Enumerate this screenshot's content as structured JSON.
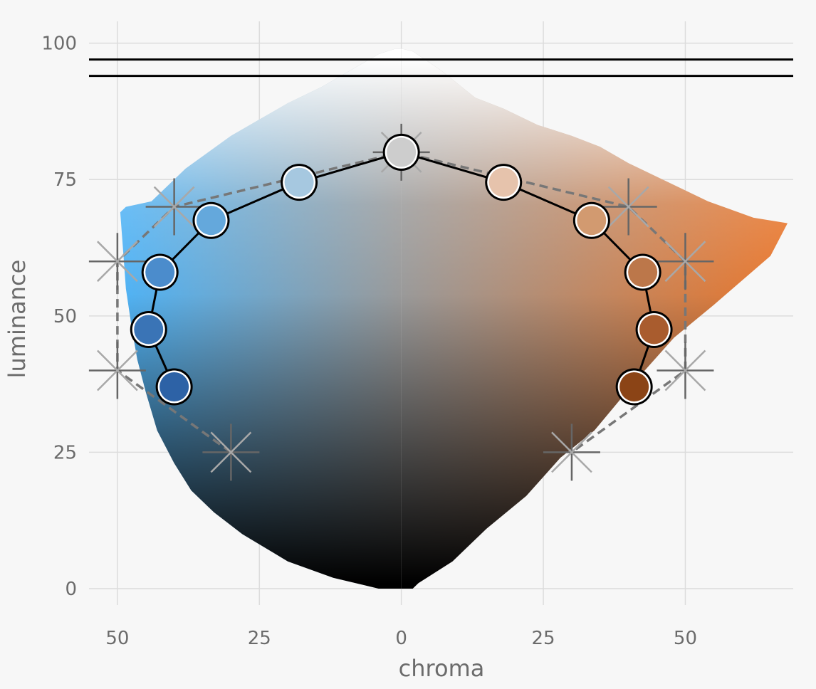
{
  "chart_data": {
    "type": "scatter",
    "title": "",
    "xlabel": "chroma",
    "ylabel": "luminance",
    "xlim": [
      -55,
      69
    ],
    "ylim": [
      -3,
      104
    ],
    "x_ticks": [
      {
        "value": -50,
        "label": "50"
      },
      {
        "value": -25,
        "label": "25"
      },
      {
        "value": 0,
        "label": "0"
      },
      {
        "value": 25,
        "label": "25"
      },
      {
        "value": 50,
        "label": "50"
      }
    ],
    "y_ticks": [
      {
        "value": 0,
        "label": "0"
      },
      {
        "value": 25,
        "label": "25"
      },
      {
        "value": 50,
        "label": "50"
      },
      {
        "value": 75,
        "label": "75"
      },
      {
        "value": 100,
        "label": "100"
      }
    ],
    "grid": true,
    "reference_lines_luminance": [
      97,
      94
    ],
    "gamut": {
      "left_hue_color": "#4fb3f6",
      "right_hue_color": "#e8762c",
      "left_boundary": [
        [
          0,
          0
        ],
        [
          -4,
          0
        ],
        [
          -12,
          2
        ],
        [
          -20,
          5
        ],
        [
          -28,
          10
        ],
        [
          -33,
          14
        ],
        [
          -37,
          18
        ],
        [
          -40,
          23
        ],
        [
          -43,
          29
        ],
        [
          -45,
          36
        ],
        [
          -46.5,
          42
        ],
        [
          -47.5,
          48
        ],
        [
          -48.5,
          55
        ],
        [
          -49,
          62
        ],
        [
          -49.5,
          69
        ],
        [
          -48.5,
          70
        ],
        [
          -44,
          71
        ],
        [
          -38,
          77
        ],
        [
          -34,
          80
        ],
        [
          -30,
          83
        ],
        [
          -25,
          86
        ],
        [
          -20,
          89
        ],
        [
          -14,
          92
        ],
        [
          -9,
          95
        ],
        [
          -4,
          98
        ],
        [
          -1,
          99
        ],
        [
          0,
          99
        ]
      ],
      "right_boundary": [
        [
          0,
          99
        ],
        [
          2,
          98.5
        ],
        [
          7,
          95
        ],
        [
          13,
          90
        ],
        [
          18,
          88
        ],
        [
          24,
          85
        ],
        [
          30,
          83
        ],
        [
          35,
          81
        ],
        [
          40,
          78
        ],
        [
          46,
          75
        ],
        [
          54,
          71
        ],
        [
          62,
          68
        ],
        [
          68,
          67
        ],
        [
          65,
          61
        ],
        [
          55,
          52
        ],
        [
          48,
          46
        ],
        [
          42,
          39
        ],
        [
          38,
          34
        ],
        [
          34,
          29
        ],
        [
          28,
          24
        ],
        [
          22,
          17
        ],
        [
          15,
          11
        ],
        [
          9,
          5
        ],
        [
          3,
          1
        ],
        [
          2,
          0
        ],
        [
          0,
          0
        ]
      ]
    },
    "series": [
      {
        "points": [
          [
            -40,
            37
          ],
          [
            -44.5,
            47.5
          ],
          [
            -42.5,
            58
          ],
          [
            -33.5,
            67.5
          ],
          [
            -18,
            74.5
          ],
          [
            0,
            80
          ],
          [
            18,
            74.5
          ],
          [
            33.5,
            67.5
          ],
          [
            42.5,
            58
          ],
          [
            44.5,
            47.5
          ],
          [
            41,
            37
          ]
        ],
        "colors": [
          "#2d62a6",
          "#3a74b6",
          "#4b8ccc",
          "#64a8dc",
          "#a6c8e0",
          "#cdcdcd",
          "#e6c3ac",
          "#d29a70",
          "#bc774a",
          "#a95c2e",
          "#8b4416"
        ]
      },
      {
        "points": [
          [
            -30,
            25
          ],
          [
            -50,
            40
          ],
          [
            -50,
            60
          ],
          [
            -40,
            70
          ],
          [
            0,
            80
          ],
          [
            40,
            70
          ],
          [
            50,
            60
          ],
          [
            50,
            40
          ],
          [
            30,
            25
          ]
        ]
      }
    ],
    "connector_order": [
      [
        -30,
        25
      ],
      [
        -50,
        40
      ],
      [
        -50,
        60
      ],
      [
        -40,
        70
      ],
      [
        0,
        80
      ],
      [
        40,
        70
      ],
      [
        50,
        60
      ],
      [
        50,
        40
      ],
      [
        30,
        25
      ]
    ]
  }
}
